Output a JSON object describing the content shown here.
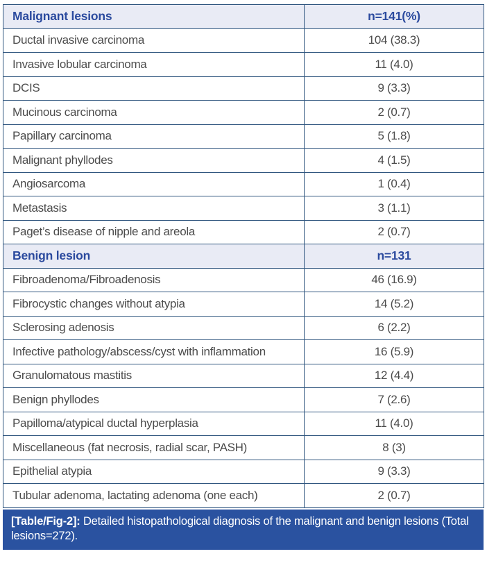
{
  "colors": {
    "border": "#30567f",
    "section_header_bg": "#e9ebf5",
    "section_header_text": "#2b4a9e",
    "body_text": "#4c4c4c",
    "caption_bg": "#2a52a0",
    "caption_text": "#ffffff"
  },
  "table": {
    "sections": [
      {
        "header": {
          "label": "Malignant lesions",
          "count": "n=141(%)"
        },
        "rows": [
          {
            "label": "Ductal invasive carcinoma",
            "value": "104 (38.3)"
          },
          {
            "label": "Invasive lobular carcinoma",
            "value": "11 (4.0)"
          },
          {
            "label": "DCIS",
            "value": "9 (3.3)"
          },
          {
            "label": "Mucinous carcinoma",
            "value": "2 (0.7)"
          },
          {
            "label": "Papillary carcinoma",
            "value": "5 (1.8)"
          },
          {
            "label": "Malignant phyllodes",
            "value": "4 (1.5)"
          },
          {
            "label": "Angiosarcoma",
            "value": "1 (0.4)"
          },
          {
            "label": "Metastasis",
            "value": "3 (1.1)"
          },
          {
            "label": "Paget’s disease of nipple and areola",
            "value": "2 (0.7)"
          }
        ]
      },
      {
        "header": {
          "label": "Benign lesion",
          "count": "n=131"
        },
        "rows": [
          {
            "label": "Fibroadenoma/Fibroadenosis",
            "value": "46 (16.9)"
          },
          {
            "label": "Fibrocystic changes without atypia",
            "value": "14 (5.2)"
          },
          {
            "label": "Sclerosing adenosis",
            "value": "6 (2.2)"
          },
          {
            "label": "Infective pathology/abscess/cyst with inflammation",
            "value": "16 (5.9)"
          },
          {
            "label": "Granulomatous mastitis",
            "value": "12 (4.4)"
          },
          {
            "label": "Benign phyllodes",
            "value": "7 (2.6)"
          },
          {
            "label": "Papilloma/atypical ductal hyperplasia",
            "value": "11 (4.0)"
          },
          {
            "label": "Miscellaneous (fat necrosis, radial scar, PASH)",
            "value": "8 (3)"
          },
          {
            "label": "Epithelial atypia",
            "value": "9 (3.3)"
          },
          {
            "label": "Tubular adenoma, lactating adenoma (one each)",
            "value": "2 (0.7)"
          }
        ]
      }
    ]
  },
  "caption": {
    "tag": "[Table/Fig-2]:",
    "text": "Detailed histopathological diagnosis of the malignant and benign lesions (Total lesions=272)."
  }
}
